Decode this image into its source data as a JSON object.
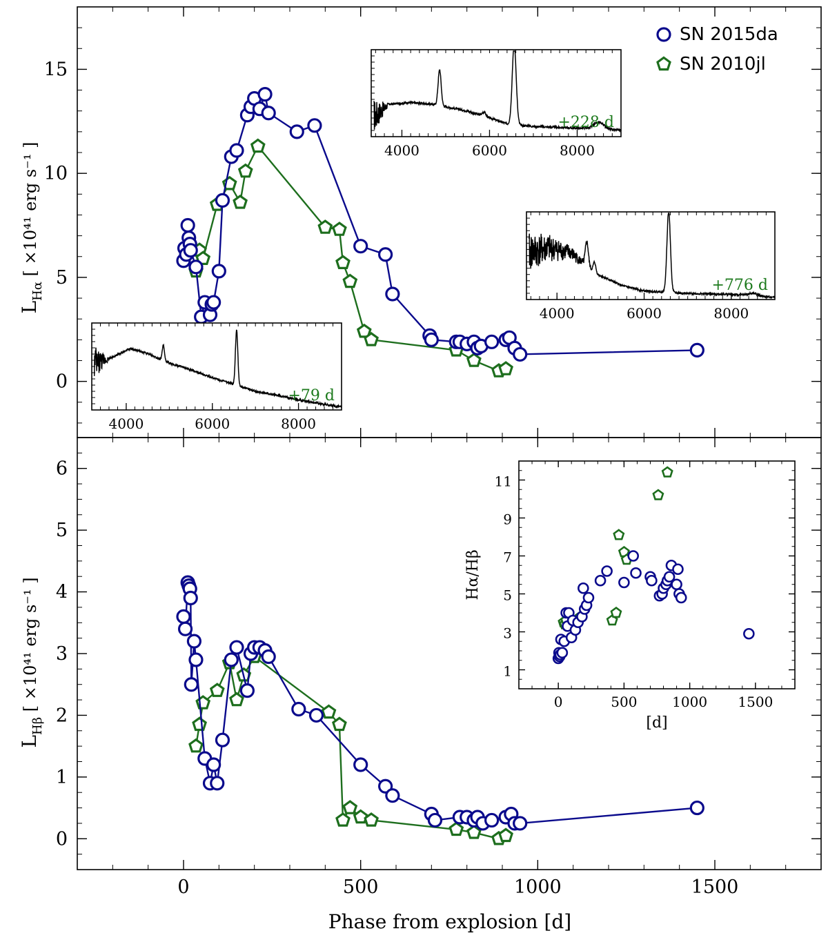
{
  "colors": {
    "sn2015da": "#0a0a8c",
    "sn2010jl": "#1d6e1d",
    "spectrum": "#000000"
  },
  "chart_data": [
    {
      "type": "line",
      "panel": "top",
      "xlabel": "",
      "ylabel_main": "L",
      "ylabel_sub": "Hα",
      "ylabel_unit": "[ ×10⁴¹ erg s⁻¹ ]",
      "xlim": [
        -300,
        1800
      ],
      "ylim": [
        -2.7,
        18
      ],
      "xticks": [
        0,
        500,
        1000,
        1500
      ],
      "yticks": [
        0,
        5,
        10,
        15
      ],
      "ytick_labels": [
        "0",
        "5",
        "10",
        "15"
      ],
      "legend": {
        "location": "top-right",
        "entries": [
          "SN 2015da",
          "SN 2010jl"
        ]
      },
      "series": [
        {
          "name": "SN 2015da",
          "marker": "circle",
          "x": [
            0,
            3,
            8,
            12,
            15,
            18,
            20,
            35,
            50,
            60,
            75,
            80,
            85,
            100,
            110,
            135,
            150,
            180,
            190,
            200,
            215,
            230,
            240,
            320,
            370,
            500,
            570,
            590,
            695,
            700,
            770,
            780,
            800,
            820,
            830,
            840,
            870,
            910,
            920,
            935,
            950,
            1450
          ],
          "y": [
            5.8,
            6.4,
            6.1,
            7.5,
            6.9,
            6.6,
            6.3,
            5.5,
            3.1,
            3.8,
            3.2,
            3.7,
            3.8,
            5.3,
            8.7,
            10.8,
            11.1,
            12.8,
            13.2,
            13.6,
            13.1,
            13.8,
            12.9,
            12.0,
            12.3,
            6.5,
            6.1,
            4.2,
            2.2,
            2.0,
            1.9,
            1.9,
            1.8,
            1.9,
            1.6,
            1.7,
            1.9,
            2.0,
            2.1,
            1.6,
            1.3,
            1.5
          ]
        },
        {
          "name": "SN 2010jl",
          "marker": "pentagon",
          "x": [
            35,
            45,
            55,
            95,
            130,
            160,
            175,
            210,
            400,
            440,
            450,
            470,
            510,
            530,
            770,
            820,
            890,
            910
          ],
          "y": [
            5.3,
            6.3,
            5.9,
            8.5,
            9.5,
            8.6,
            10.1,
            11.3,
            7.4,
            7.3,
            5.7,
            4.8,
            2.4,
            2.0,
            1.5,
            1.0,
            0.5,
            0.6
          ]
        }
      ]
    },
    {
      "type": "line",
      "panel": "bottom",
      "xlabel": "Phase from explosion [d]",
      "ylabel_main": "L",
      "ylabel_sub": "Hβ",
      "ylabel_unit": "[ ×10⁴¹ erg s⁻¹ ]",
      "xlim": [
        -300,
        1800
      ],
      "ylim": [
        -0.5,
        6.5
      ],
      "xticks": [
        0,
        500,
        1000,
        1500
      ],
      "xtick_labels": [
        "0",
        "500",
        "1000",
        "1500"
      ],
      "yticks": [
        0,
        1,
        2,
        3,
        4,
        5,
        6
      ],
      "ytick_labels": [
        "0",
        "1",
        "2",
        "3",
        "4",
        "5",
        "6"
      ],
      "series": [
        {
          "name": "SN 2015da",
          "marker": "circle",
          "x": [
            0,
            5,
            12,
            15,
            18,
            20,
            22,
            30,
            35,
            60,
            75,
            85,
            95,
            110,
            135,
            150,
            180,
            190,
            200,
            215,
            230,
            240,
            325,
            375,
            500,
            570,
            590,
            700,
            710,
            780,
            800,
            820,
            830,
            845,
            870,
            910,
            925,
            935,
            950,
            1450
          ],
          "y": [
            3.6,
            3.4,
            4.15,
            4.1,
            4.05,
            3.9,
            2.5,
            3.2,
            2.9,
            1.3,
            0.9,
            1.2,
            0.9,
            1.6,
            2.9,
            3.1,
            2.4,
            3.0,
            3.1,
            3.1,
            3.05,
            2.95,
            2.1,
            2.0,
            1.2,
            0.85,
            0.7,
            0.4,
            0.3,
            0.35,
            0.35,
            0.3,
            0.35,
            0.25,
            0.3,
            0.35,
            0.4,
            0.25,
            0.25,
            0.5
          ]
        },
        {
          "name": "SN 2010jl",
          "marker": "pentagon",
          "x": [
            35,
            45,
            55,
            95,
            130,
            150,
            170,
            200,
            410,
            440,
            450,
            470,
            500,
            530,
            770,
            820,
            890,
            910
          ],
          "y": [
            1.5,
            1.85,
            2.2,
            2.4,
            2.85,
            2.25,
            2.65,
            2.95,
            2.05,
            1.85,
            0.3,
            0.5,
            0.35,
            0.3,
            0.15,
            0.1,
            0.0,
            0.05
          ]
        }
      ]
    },
    {
      "type": "scatter",
      "panel": "bottom-inset",
      "xlabel": "[d]",
      "ylabel": "Hα/Hβ",
      "xlim": [
        -300,
        1800
      ],
      "ylim": [
        0,
        12
      ],
      "xticks": [
        0,
        500,
        1000,
        1500
      ],
      "xtick_labels": [
        "0",
        "500",
        "1000",
        "1500"
      ],
      "yticks": [
        1,
        3,
        5,
        7,
        9,
        11
      ],
      "ytick_labels": [
        "1",
        "3",
        "5",
        "7",
        "9",
        "11"
      ],
      "series": [
        {
          "name": "SN 2015da",
          "marker": "circle",
          "x": [
            0,
            5,
            10,
            15,
            20,
            30,
            45,
            60,
            70,
            80,
            100,
            110,
            130,
            150,
            180,
            190,
            200,
            215,
            230,
            320,
            370,
            500,
            570,
            590,
            700,
            710,
            770,
            790,
            800,
            820,
            830,
            845,
            860,
            900,
            910,
            920,
            935,
            1450
          ],
          "y": [
            1.6,
            1.9,
            1.7,
            1.8,
            2.6,
            1.9,
            2.5,
            4.0,
            3.3,
            4.0,
            2.7,
            3.6,
            3.1,
            3.5,
            3.8,
            5.3,
            4.2,
            4.4,
            4.8,
            5.7,
            6.2,
            5.6,
            7.0,
            6.1,
            5.9,
            5.7,
            4.9,
            5.0,
            5.3,
            5.5,
            5.7,
            5.9,
            6.5,
            5.5,
            6.3,
            5.0,
            4.8,
            2.9
          ]
        },
        {
          "name": "SN 2010jl",
          "marker": "pentagon",
          "x": [
            40,
            50,
            60,
            170,
            410,
            440,
            460,
            500,
            520,
            760,
            830
          ],
          "y": [
            3.5,
            3.4,
            3.6,
            3.8,
            3.6,
            4.0,
            8.1,
            7.2,
            6.8,
            10.2,
            11.4
          ]
        }
      ]
    },
    {
      "type": "line",
      "panel": "spectrum-inset",
      "phase_label": "+228 d",
      "xlim": [
        3300,
        9000
      ],
      "xticks": [
        4000,
        6000,
        8000
      ],
      "xtick_labels": [
        "4000",
        "6000",
        "8000"
      ],
      "features": {
        "continuum": [
          [
            3400,
            0.25
          ],
          [
            3700,
            0.38
          ],
          [
            4200,
            0.4
          ],
          [
            4700,
            0.38
          ],
          [
            5500,
            0.3
          ],
          [
            6000,
            0.22
          ],
          [
            6400,
            0.15
          ],
          [
            7000,
            0.12
          ],
          [
            8000,
            0.1
          ],
          [
            8800,
            0.08
          ]
        ],
        "noise_until": 3700,
        "lines": [
          [
            4861,
            0.42,
            35
          ],
          [
            6563,
            0.95,
            45
          ],
          [
            5876,
            0.05,
            40
          ],
          [
            8500,
            0.08,
            120
          ]
        ]
      }
    },
    {
      "type": "line",
      "panel": "spectrum-inset",
      "phase_label": "+776 d",
      "xlim": [
        3300,
        9000
      ],
      "xticks": [
        4000,
        6000,
        8000
      ],
      "xtick_labels": [
        "4000",
        "6000",
        "8000"
      ],
      "features": {
        "continuum": [
          [
            3400,
            0.55
          ],
          [
            3800,
            0.6
          ],
          [
            4300,
            0.55
          ],
          [
            4900,
            0.3
          ],
          [
            5500,
            0.16
          ],
          [
            6000,
            0.1
          ],
          [
            7000,
            0.07
          ],
          [
            8000,
            0.06
          ],
          [
            8800,
            0.03
          ]
        ],
        "noise_until": 4800,
        "lines": [
          [
            4686,
            0.28,
            35
          ],
          [
            4861,
            0.12,
            30
          ],
          [
            6563,
            0.95,
            40
          ],
          [
            8500,
            0.03,
            120
          ]
        ]
      }
    },
    {
      "type": "line",
      "panel": "spectrum-inset",
      "phase_label": "+79 d",
      "xlim": [
        3200,
        9000
      ],
      "xticks": [
        4000,
        6000,
        8000
      ],
      "xtick_labels": [
        "4000",
        "6000",
        "8000"
      ],
      "features": {
        "continuum": [
          [
            3300,
            0.55
          ],
          [
            3600,
            0.6
          ],
          [
            4100,
            0.72
          ],
          [
            4500,
            0.66
          ],
          [
            5000,
            0.55
          ],
          [
            5500,
            0.47
          ],
          [
            6000,
            0.38
          ],
          [
            6500,
            0.3
          ],
          [
            7000,
            0.22
          ],
          [
            8000,
            0.12
          ],
          [
            8900,
            0.04
          ]
        ],
        "noise_until": 3600,
        "lines": [
          [
            4861,
            0.18,
            25
          ],
          [
            6563,
            0.65,
            28
          ]
        ]
      }
    }
  ]
}
